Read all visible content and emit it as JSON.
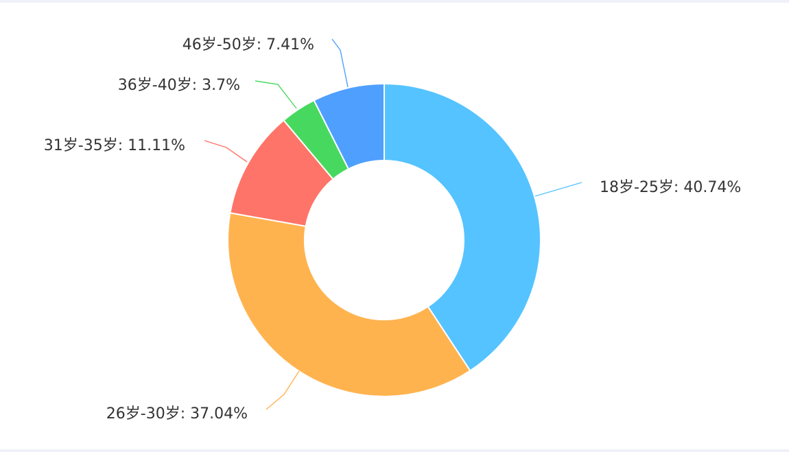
{
  "chart_data": {
    "type": "pie",
    "donut": true,
    "title": "",
    "legend": "none",
    "slices": [
      {
        "label": "18岁-25岁",
        "value": 40.74,
        "display": "18岁-25岁: 40.74%",
        "color": "#55C3FF"
      },
      {
        "label": "26岁-30岁",
        "value": 37.04,
        "display": "26岁-30岁: 37.04%",
        "color": "#FFB34F"
      },
      {
        "label": "31岁-35岁",
        "value": 11.11,
        "display": "31岁-35岁: 11.11%",
        "color": "#FF7468"
      },
      {
        "label": "36岁-40岁",
        "value": 3.7,
        "display": "36岁-40岁: 3.7%",
        "color": "#47D95F"
      },
      {
        "label": "46岁-50岁",
        "value": 7.41,
        "display": "46岁-50岁: 7.41%",
        "color": "#4F9FFF"
      }
    ]
  }
}
